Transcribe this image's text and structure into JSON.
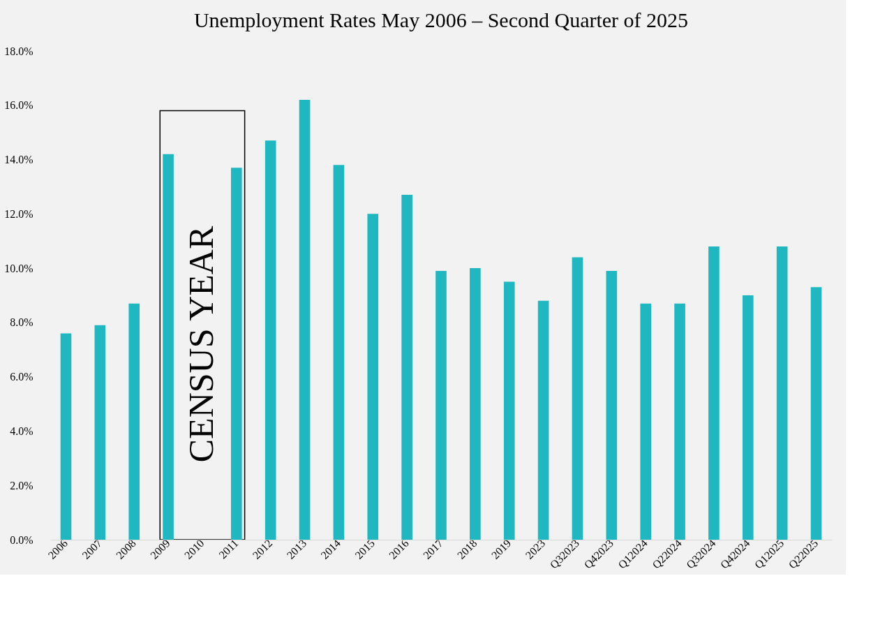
{
  "chart_data": {
    "type": "bar",
    "title": "Unemployment Rates May 2006 – Second Quarter of 2025",
    "categories": [
      "2006",
      "2007",
      "2008",
      "2009",
      "2010",
      "2011",
      "2012",
      "2013",
      "2014",
      "2015",
      "2016",
      "2017",
      "2018",
      "2019",
      "2023",
      "Q32023",
      "Q42023",
      "Q12024",
      "Q22024",
      "Q32024",
      "Q42024",
      "Q12025",
      "Q22025"
    ],
    "values": [
      7.6,
      7.9,
      8.7,
      14.2,
      null,
      13.7,
      14.7,
      16.2,
      13.8,
      12.0,
      12.7,
      9.9,
      10.0,
      9.5,
      8.8,
      10.4,
      9.9,
      8.7,
      8.7,
      10.8,
      9.0,
      10.8,
      9.3
    ],
    "color": "#20b8c0",
    "ylim": [
      0,
      18
    ],
    "yticks": [
      {
        "value": 0,
        "label": "0.0%"
      },
      {
        "value": 2,
        "label": "2.0%"
      },
      {
        "value": 4,
        "label": "4.0%"
      },
      {
        "value": 6,
        "label": "6.0%"
      },
      {
        "value": 8,
        "label": "8.0%"
      },
      {
        "value": 10,
        "label": "10.0%"
      },
      {
        "value": 12,
        "label": "12.0%"
      },
      {
        "value": 14,
        "label": "14.0%"
      },
      {
        "value": 16,
        "label": "16.0%"
      },
      {
        "value": 18,
        "label": "18.0%"
      }
    ],
    "grid": false,
    "bands": [
      {
        "axis": "x",
        "from": "2009",
        "to": "2011",
        "label": "CENSUS YEAR",
        "color": "#f2f2f2"
      }
    ]
  }
}
